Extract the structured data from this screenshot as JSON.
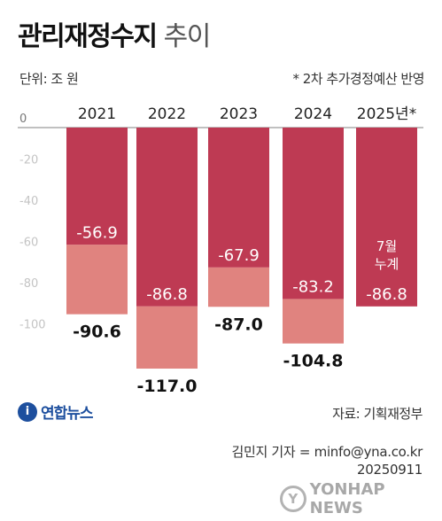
{
  "header": {
    "title_bold": "관리재정수지",
    "title_light": "추이",
    "unit": "단위: 조 원",
    "note": "* 2차 추가경정예산 반영"
  },
  "colors": {
    "dark": "#be3a53",
    "light": "#e0837f",
    "axis": "#9a9a9a",
    "gridline": "#d0d0d0"
  },
  "chart_data": {
    "type": "bar",
    "categories": [
      "2021",
      "2022",
      "2023",
      "2024",
      "2025년*"
    ],
    "y_ticks": [
      "0",
      "-20",
      "-40",
      "-60",
      "-80",
      "-100"
    ],
    "ylim": [
      -120,
      0
    ],
    "series": [
      {
        "values": [
          -56.9,
          -86.8,
          -67.9,
          -83.2,
          -86.8
        ]
      },
      {
        "values": [
          -90.6,
          -117.0,
          -87.0,
          -104.8,
          null
        ]
      }
    ],
    "inner_labels": [
      "-56.9",
      "-86.8",
      "-67.9",
      "-83.2",
      "-86.8"
    ],
    "total_labels": [
      "-90.6",
      "-117.0",
      "-87.0",
      "-104.8",
      ""
    ],
    "annotation_2025": [
      "7월",
      "누계"
    ]
  },
  "footer": {
    "logo_mark": "i",
    "logo_text": "연합뉴스",
    "source": "자료: 기획재정부",
    "reporter": "김민지 기자 = minfo@yna.co.kr",
    "date": "20250911",
    "watermark_mark": "Y",
    "watermark_text": "YONHAP NEWS"
  }
}
